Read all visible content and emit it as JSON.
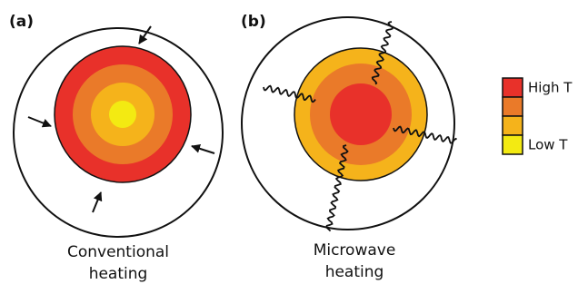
{
  "panels": [
    {
      "label": "(a)",
      "caption": [
        "Conventional",
        "heating"
      ]
    },
    {
      "label": "(b)",
      "caption": [
        "Microwave",
        "heating"
      ]
    }
  ],
  "legend": {
    "high": "High T",
    "low": "Low T"
  }
}
